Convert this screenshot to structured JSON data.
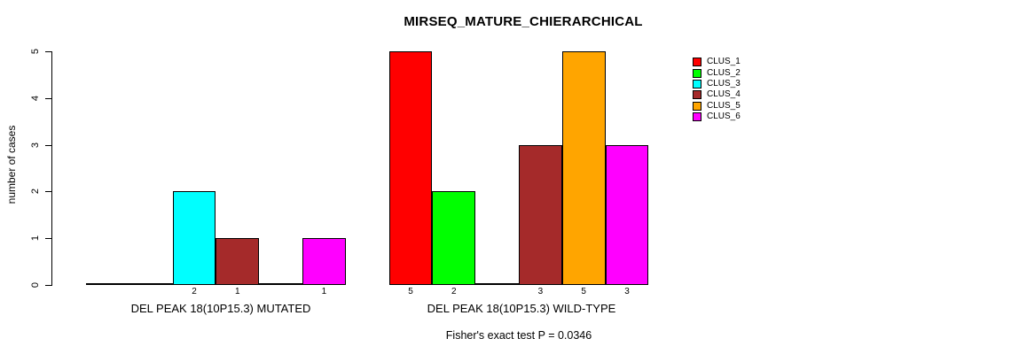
{
  "chart_data": {
    "type": "bar",
    "title": "MIRSEQ_MATURE_CHIERARCHICAL",
    "ylabel": "number of cases",
    "xlabel": "",
    "ylim": [
      0,
      5
    ],
    "y_ticks": [
      0,
      1,
      2,
      3,
      4,
      5
    ],
    "grid": false,
    "legend_position": "right-outside",
    "categories": [
      "DEL PEAK 18(10P15.3) MUTATED",
      "DEL PEAK 18(10P15.3) WILD-TYPE"
    ],
    "series": [
      {
        "name": "CLUS_1",
        "color": "#FF0000",
        "values": [
          0,
          5
        ]
      },
      {
        "name": "CLUS_2",
        "color": "#00FF00",
        "values": [
          0,
          2
        ]
      },
      {
        "name": "CLUS_3",
        "color": "#00FFFF",
        "values": [
          2,
          0
        ]
      },
      {
        "name": "CLUS_4",
        "color": "#A52A2A",
        "values": [
          1,
          3
        ]
      },
      {
        "name": "CLUS_5",
        "color": "#FFA500",
        "values": [
          0,
          5
        ]
      },
      {
        "name": "CLUS_6",
        "color": "#FF00FF",
        "values": [
          1,
          3
        ]
      }
    ],
    "bar_value_labels": {
      "mutated": [
        "2",
        "1",
        "1"
      ],
      "wild_type": [
        "5",
        "2",
        "3",
        "5",
        "3"
      ],
      "note": "labels shown only under non-zero bars"
    },
    "footnote": "Fisher's exact test P = 0.0346"
  }
}
